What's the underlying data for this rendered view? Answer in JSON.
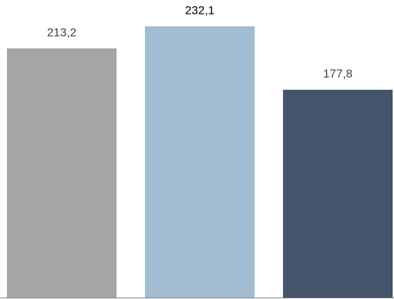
{
  "chart_data": {
    "type": "bar",
    "categories": [
      null,
      null,
      null
    ],
    "values": [
      213.2,
      232.1,
      177.8
    ],
    "value_labels": [
      "213,2",
      "232,1",
      "177,8"
    ],
    "colors": [
      "#a5a5a5",
      "#a2bcd1",
      "#44546a"
    ],
    "label_colors": [
      "#404040",
      "#000000",
      "#404040"
    ]
  }
}
